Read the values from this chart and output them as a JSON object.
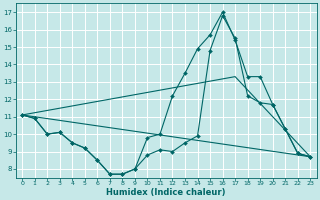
{
  "title": "",
  "xlabel": "Humidex (Indice chaleur)",
  "xlim": [
    -0.5,
    23.5
  ],
  "ylim": [
    7.5,
    17.5
  ],
  "xticks": [
    0,
    1,
    2,
    3,
    4,
    5,
    6,
    7,
    8,
    9,
    10,
    11,
    12,
    13,
    14,
    15,
    16,
    17,
    18,
    19,
    20,
    21,
    22,
    23
  ],
  "yticks": [
    8,
    9,
    10,
    11,
    12,
    13,
    14,
    15,
    16,
    17
  ],
  "bg_color": "#c6e8e8",
  "line_color": "#006666",
  "grid_color": "#ffffff",
  "lines": [
    {
      "x": [
        0,
        1,
        2,
        3,
        4,
        5,
        6,
        7,
        8,
        9,
        10,
        11,
        12,
        13,
        14,
        15,
        16,
        17,
        18,
        19,
        20,
        21,
        22,
        23
      ],
      "y": [
        11.1,
        10.9,
        10.0,
        10.1,
        9.5,
        9.2,
        8.5,
        7.7,
        7.7,
        8.0,
        8.8,
        9.1,
        9.0,
        9.5,
        9.9,
        14.8,
        16.8,
        15.5,
        12.2,
        11.8,
        11.7,
        10.3,
        8.9,
        8.7
      ],
      "marker": true
    },
    {
      "x": [
        0,
        1,
        2,
        3,
        4,
        5,
        6,
        7,
        8,
        9,
        10,
        11,
        12,
        13,
        14,
        15,
        16,
        17,
        18,
        19,
        20,
        21,
        22,
        23
      ],
      "y": [
        11.1,
        10.9,
        10.0,
        10.1,
        9.5,
        9.2,
        8.5,
        7.7,
        7.7,
        8.0,
        9.8,
        10.0,
        12.2,
        13.5,
        14.9,
        15.7,
        17.0,
        15.4,
        13.3,
        13.3,
        11.7,
        10.3,
        8.9,
        8.7
      ],
      "marker": true
    },
    {
      "x": [
        0,
        23
      ],
      "y": [
        11.1,
        8.7
      ],
      "marker": false
    },
    {
      "x": [
        0,
        17,
        23
      ],
      "y": [
        11.1,
        13.3,
        8.7
      ],
      "marker": false
    }
  ]
}
